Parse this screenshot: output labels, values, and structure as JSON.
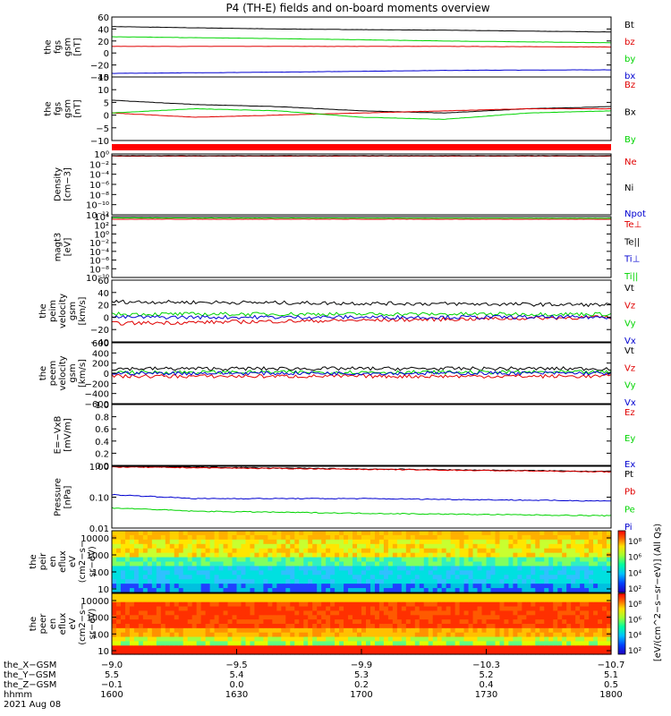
{
  "title": "P4 (TH-E) fields and on-board moments overview",
  "colors": {
    "black": "#000000",
    "red": "#e00000",
    "green": "#00d400",
    "blue": "#0000d0",
    "band_red": "#ff0000"
  },
  "chart_data": [
    {
      "type": "line",
      "ylabel": [
        "the",
        "fgs",
        "gsm",
        "[nT]"
      ],
      "ylim": [
        -40,
        60
      ],
      "ticks": [
        "60",
        "40",
        "20",
        "0",
        "−20",
        "−40"
      ],
      "legend": [
        {
          "name": "Bt",
          "color": "#000000"
        },
        {
          "name": "bz",
          "color": "#e00000"
        },
        {
          "name": "by",
          "color": "#00d400"
        },
        {
          "name": "bx",
          "color": "#0000d0"
        }
      ],
      "series": [
        {
          "name": "Bt",
          "color": "#000000",
          "x": [
            0,
            60,
            120,
            180
          ],
          "y": [
            44,
            40,
            38,
            35
          ]
        },
        {
          "name": "bz",
          "color": "#e00000",
          "x": [
            0,
            60,
            120,
            180
          ],
          "y": [
            11,
            11,
            11,
            10
          ]
        },
        {
          "name": "by",
          "color": "#00d400",
          "x": [
            0,
            60,
            120,
            180
          ],
          "y": [
            27,
            24,
            20,
            17
          ]
        },
        {
          "name": "bx",
          "color": "#0000d0",
          "x": [
            0,
            60,
            120,
            180
          ],
          "y": [
            -34,
            -32,
            -29,
            -28
          ]
        }
      ]
    },
    {
      "type": "line",
      "ylabel": [
        "the",
        "fgs",
        "gsm",
        "[nT]"
      ],
      "ylim": [
        -15,
        15
      ],
      "ticks": [
        "15",
        "10",
        "5",
        "0",
        "−5",
        "−10"
      ],
      "legend": [
        {
          "name": "Bz",
          "color": "#e00000"
        },
        {
          "name": "Bx",
          "color": "#000000"
        },
        {
          "name": "By",
          "color": "#00d400"
        }
      ],
      "series": [
        {
          "name": "Bx",
          "color": "#000000",
          "x": [
            0,
            30,
            60,
            90,
            120,
            150,
            180
          ],
          "y": [
            4,
            2,
            1,
            -1,
            -2,
            0,
            1
          ]
        },
        {
          "name": "Bz",
          "color": "#e00000",
          "x": [
            0,
            30,
            60,
            90,
            120,
            150,
            180
          ],
          "y": [
            -2,
            -4,
            -3,
            -2,
            -1,
            0,
            0
          ]
        },
        {
          "name": "By",
          "color": "#00d400",
          "x": [
            0,
            30,
            60,
            90,
            120,
            150,
            180
          ],
          "y": [
            -2,
            0,
            -1,
            -4,
            -5,
            -2,
            -1
          ]
        }
      ]
    },
    {
      "type": "line",
      "ylabel": [
        "Density",
        "[cm−3]"
      ],
      "ylim": [
        -14,
        0
      ],
      "scale": "log",
      "ticks": [
        "10⁰",
        "10⁻²",
        "10⁻⁴",
        "10⁻⁶",
        "10⁻⁸",
        "10⁻¹⁰",
        "10⁻¹²"
      ],
      "legend": [
        {
          "name": "Ne",
          "color": "#e00000"
        },
        {
          "name": "Ni",
          "color": "#000000"
        },
        {
          "name": "Npot",
          "color": "#0000d0"
        }
      ],
      "series": [
        {
          "name": "Ne",
          "color": "#e00000",
          "x": [
            0,
            180
          ],
          "y": [
            -0.5,
            -0.5
          ]
        },
        {
          "name": "Ni",
          "color": "#000000",
          "x": [
            0,
            180
          ],
          "y": [
            -0.4,
            -0.4
          ]
        }
      ]
    },
    {
      "type": "line",
      "ylabel": [
        "magt3",
        "[eV]"
      ],
      "ylim": [
        -10,
        4
      ],
      "scale": "log",
      "ticks": [
        "10⁴",
        "10²",
        "10⁰",
        "10⁻²",
        "10⁻⁴",
        "10⁻⁶",
        "10⁻⁸",
        "10⁻¹⁰"
      ],
      "legend": [
        {
          "name": "Te⊥",
          "color": "#e00000"
        },
        {
          "name": "Te||",
          "color": "#000000"
        },
        {
          "name": "Ti⊥",
          "color": "#0000d0"
        },
        {
          "name": "Ti||",
          "color": "#00d400"
        }
      ],
      "series": [
        {
          "name": "Te⊥",
          "color": "#e00000",
          "x": [
            0,
            180
          ],
          "y": [
            3.4,
            3.4
          ]
        },
        {
          "name": "Ti||",
          "color": "#00d400",
          "x": [
            0,
            180
          ],
          "y": [
            3.7,
            3.6
          ]
        }
      ]
    },
    {
      "type": "line",
      "ylabel": [
        "the",
        "peim",
        "velocity",
        "gsm",
        "[km/s]"
      ],
      "ylim": [
        -40,
        60
      ],
      "ticks": [
        "60",
        "40",
        "20",
        "0",
        "−20",
        "−40"
      ],
      "legend": [
        {
          "name": "Vt",
          "color": "#000000"
        },
        {
          "name": "Vz",
          "color": "#e00000"
        },
        {
          "name": "Vy",
          "color": "#00d400"
        },
        {
          "name": "Vx",
          "color": "#0000d0"
        }
      ],
      "series": [
        {
          "name": "Vt",
          "color": "#000000",
          "x": [
            0,
            180
          ],
          "y": [
            25,
            20
          ]
        },
        {
          "name": "Vz",
          "color": "#e00000",
          "x": [
            0,
            180
          ],
          "y": [
            -10,
            0
          ]
        },
        {
          "name": "Vy",
          "color": "#00d400",
          "x": [
            0,
            180
          ],
          "y": [
            5,
            5
          ]
        },
        {
          "name": "Vx",
          "color": "#0000d0",
          "x": [
            0,
            180
          ],
          "y": [
            0,
            0
          ]
        }
      ]
    },
    {
      "type": "line",
      "ylabel": [
        "the",
        "peem",
        "velocity",
        "gsm",
        "[km/s]"
      ],
      "ylim": [
        -600,
        600
      ],
      "ticks": [
        "600",
        "400",
        "200",
        "0",
        "−200",
        "−400",
        "−600"
      ],
      "legend": [
        {
          "name": "Vt",
          "color": "#000000"
        },
        {
          "name": "Vz",
          "color": "#e00000"
        },
        {
          "name": "Vy",
          "color": "#00d400"
        },
        {
          "name": "Vx",
          "color": "#0000d0"
        }
      ],
      "series": [
        {
          "name": "Vt",
          "color": "#000000",
          "x": [
            0,
            180
          ],
          "y": [
            90,
            90
          ]
        },
        {
          "name": "Vz",
          "color": "#e00000",
          "x": [
            0,
            180
          ],
          "y": [
            -60,
            -60
          ]
        },
        {
          "name": "Vy",
          "color": "#00d400",
          "x": [
            0,
            180
          ],
          "y": [
            20,
            20
          ]
        },
        {
          "name": "Vx",
          "color": "#0000d0",
          "x": [
            0,
            180
          ],
          "y": [
            0,
            0
          ]
        }
      ]
    },
    {
      "type": "line",
      "ylabel": [
        "E=−VxB",
        "[mV/m]"
      ],
      "ylim": [
        0,
        1
      ],
      "ticks": [
        "1.0",
        "0.8",
        "0.6",
        "0.4",
        "0.2",
        "0.0"
      ],
      "legend": [
        {
          "name": "Ez",
          "color": "#e00000"
        },
        {
          "name": "Ey",
          "color": "#00d400"
        },
        {
          "name": "Ex",
          "color": "#0000d0"
        }
      ],
      "series": []
    },
    {
      "type": "line",
      "ylabel": [
        "Pressure",
        "[nPa]"
      ],
      "ylim": [
        -2,
        0
      ],
      "scale": "log",
      "ticks": [
        "1.00",
        "0.10",
        "0.01"
      ],
      "legend": [
        {
          "name": "Pt",
          "color": "#000000"
        },
        {
          "name": "Pb",
          "color": "#e00000"
        },
        {
          "name": "Pe",
          "color": "#00d400"
        },
        {
          "name": "Pi",
          "color": "#0000d0"
        }
      ],
      "series": [
        {
          "name": "Pt",
          "color": "#000000",
          "x": [
            0,
            90,
            180
          ],
          "y": [
            0.98,
            0.82,
            0.68
          ]
        },
        {
          "name": "Pb",
          "color": "#e00000",
          "x": [
            0,
            90,
            180
          ],
          "y": [
            0.95,
            0.8,
            0.66
          ]
        },
        {
          "name": "Pi",
          "color": "#0000d0",
          "x": [
            0,
            30,
            90,
            180
          ],
          "y": [
            0.12,
            0.09,
            0.09,
            0.075
          ]
        },
        {
          "name": "Pe",
          "color": "#00d400",
          "x": [
            0,
            30,
            90,
            180
          ],
          "y": [
            0.045,
            0.035,
            0.03,
            0.025
          ]
        }
      ]
    },
    {
      "type": "heatmap",
      "ylabel": [
        "the",
        "peir",
        "en",
        "eflux",
        "eV",
        "(cm2−s−",
        "sr−eV)"
      ],
      "ticks": [
        "10000",
        "1000",
        "100",
        "10"
      ],
      "ylim": [
        5,
        15000
      ],
      "scale": "log"
    },
    {
      "type": "heatmap",
      "ylabel": [
        "the",
        "peer",
        "en",
        "eflux",
        "eV",
        "(cm2−s−",
        "sr−eV)"
      ],
      "ticks": [
        "10000",
        "1000",
        "100",
        "10"
      ],
      "ylim": [
        5,
        15000
      ],
      "scale": "log"
    }
  ],
  "colorbar": {
    "label": "[eV/(cm^2−s−sr−eV)] (All Qs)",
    "ticks_top": [
      "10⁸",
      "10⁶",
      "10⁴",
      "10²"
    ],
    "ticks_bottom": [
      "10⁸",
      "10⁶",
      "10⁴",
      "10²"
    ]
  },
  "xaxis": {
    "rows": [
      {
        "label": "the_X−GSM",
        "values": [
          "−9.0",
          "−9.5",
          "−9.9",
          "−10.3",
          "−10.7"
        ]
      },
      {
        "label": "the_Y−GSM",
        "values": [
          "5.5",
          "5.4",
          "5.3",
          "5.2",
          "5.1"
        ]
      },
      {
        "label": "the_Z−GSM",
        "values": [
          "−0.1",
          "0.0",
          "0.2",
          "0.4",
          "0.5"
        ]
      },
      {
        "label": "hhmm",
        "values": [
          "1600",
          "1630",
          "1700",
          "1730",
          "1800"
        ]
      }
    ],
    "date": "2021 Aug 08"
  }
}
